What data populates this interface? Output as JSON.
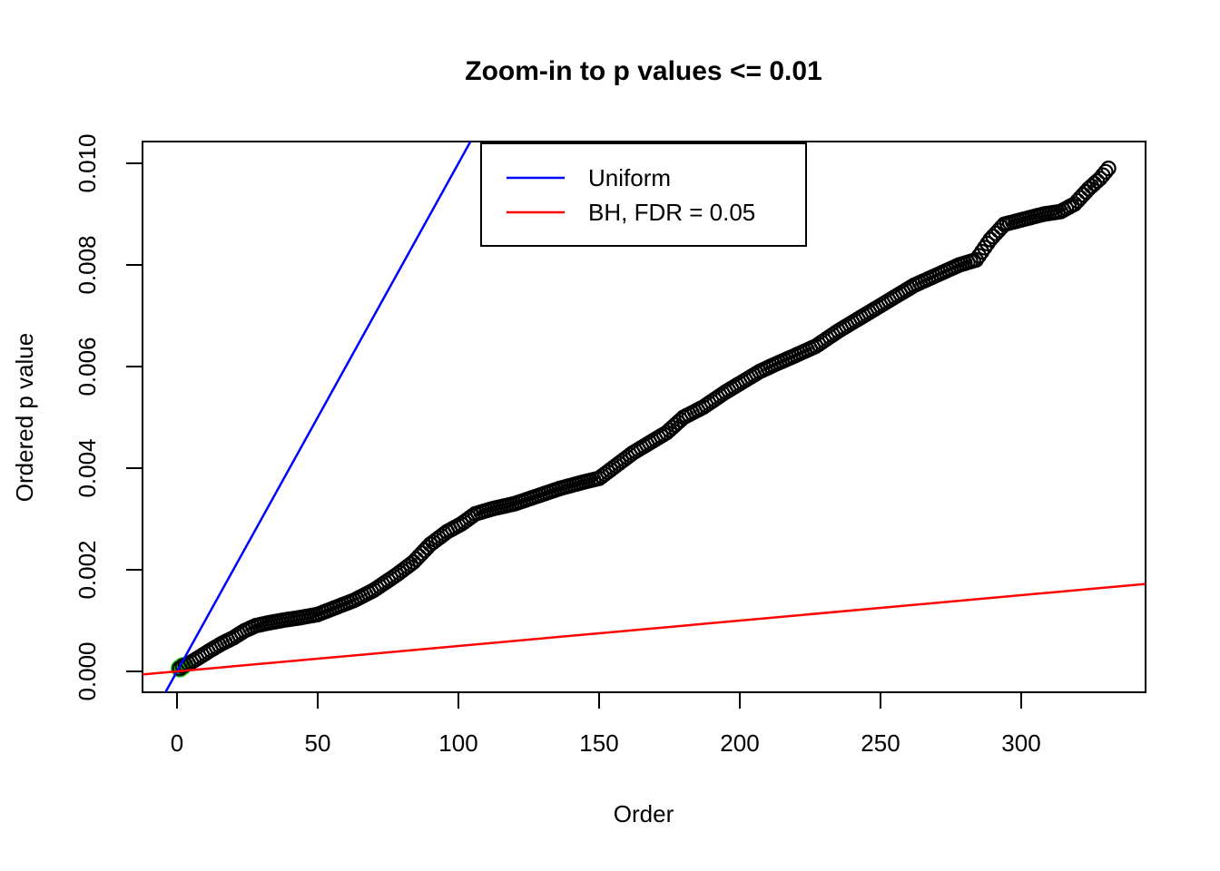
{
  "chart_data": {
    "type": "scatter",
    "title": "Zoom-in to p values <= 0.01",
    "xlabel": "Order",
    "ylabel": "Ordered p value",
    "xlim": [
      -12.3,
      344.2
    ],
    "ylim": [
      -0.00041,
      0.01043
    ],
    "grid": false,
    "x_ticks": [
      0,
      50,
      100,
      150,
      200,
      250,
      300
    ],
    "y_tick_values": [
      0,
      0.002,
      0.004,
      0.006,
      0.008,
      0.01
    ],
    "y_tick_labels": [
      "0.000",
      "0.002",
      "0.004",
      "0.006",
      "0.008",
      "0.010"
    ],
    "n_points": 331,
    "series": [
      {
        "name": "ordered-p-values",
        "marker": "open-circle",
        "color": "#000000",
        "waypoints": [
          [
            1,
            6e-05
          ],
          [
            2,
            0.0001
          ],
          [
            3,
            0.00013
          ],
          [
            5,
            0.00018
          ],
          [
            8,
            0.00028
          ],
          [
            12,
            0.00042
          ],
          [
            16,
            0.00055
          ],
          [
            20,
            0.00066
          ],
          [
            24,
            0.0008
          ],
          [
            28,
            0.0009
          ],
          [
            33,
            0.00096
          ],
          [
            38,
            0.00101
          ],
          [
            44,
            0.00106
          ],
          [
            50,
            0.00112
          ],
          [
            56,
            0.00125
          ],
          [
            63,
            0.0014
          ],
          [
            70,
            0.0016
          ],
          [
            78,
            0.0019
          ],
          [
            84,
            0.00215
          ],
          [
            90,
            0.0025
          ],
          [
            96,
            0.00275
          ],
          [
            101,
            0.0029
          ],
          [
            106,
            0.0031
          ],
          [
            112,
            0.0032
          ],
          [
            120,
            0.0033
          ],
          [
            128,
            0.00345
          ],
          [
            136,
            0.0036
          ],
          [
            144,
            0.00372
          ],
          [
            150,
            0.0038
          ],
          [
            156,
            0.00405
          ],
          [
            162,
            0.0043
          ],
          [
            168,
            0.0045
          ],
          [
            174,
            0.0047
          ],
          [
            180,
            0.005
          ],
          [
            187,
            0.0052
          ],
          [
            195,
            0.0055
          ],
          [
            201,
            0.0057
          ],
          [
            207,
            0.0059
          ],
          [
            212,
            0.00603
          ],
          [
            219,
            0.0062
          ],
          [
            227,
            0.0064
          ],
          [
            235,
            0.0067
          ],
          [
            244,
            0.007
          ],
          [
            253,
            0.0073
          ],
          [
            262,
            0.0076
          ],
          [
            270,
            0.0078
          ],
          [
            278,
            0.008
          ],
          [
            284,
            0.0081
          ],
          [
            289,
            0.0085
          ],
          [
            294,
            0.0088
          ],
          [
            301,
            0.0089
          ],
          [
            308,
            0.009
          ],
          [
            314,
            0.00905
          ],
          [
            319,
            0.0092
          ],
          [
            324,
            0.0095
          ],
          [
            328,
            0.0097
          ],
          [
            331,
            0.0099
          ]
        ]
      },
      {
        "name": "bh-significant-points",
        "marker": "filled-circle",
        "color": "#00CD00",
        "points": [
          [
            1,
            6e-05
          ],
          [
            2,
            0.0001
          ]
        ]
      }
    ],
    "lines": [
      {
        "name": "Uniform",
        "color": "#0000FF",
        "slope": 0.0001,
        "intercept": 0
      },
      {
        "name": "BH, FDR = 0.05",
        "color": "#FF0000",
        "slope": 5e-06,
        "intercept": 0
      }
    ],
    "legend": {
      "position": "top-center-inside",
      "entries": [
        {
          "label": "Uniform",
          "color": "#0000FF"
        },
        {
          "label": "BH, FDR = 0.05",
          "color": "#FF0000"
        }
      ]
    },
    "colors": {
      "background": "#FFFFFF",
      "points": "#000000",
      "uniform_line": "#0000FF",
      "bh_line": "#FF0000",
      "significant": "#00CD00"
    }
  }
}
